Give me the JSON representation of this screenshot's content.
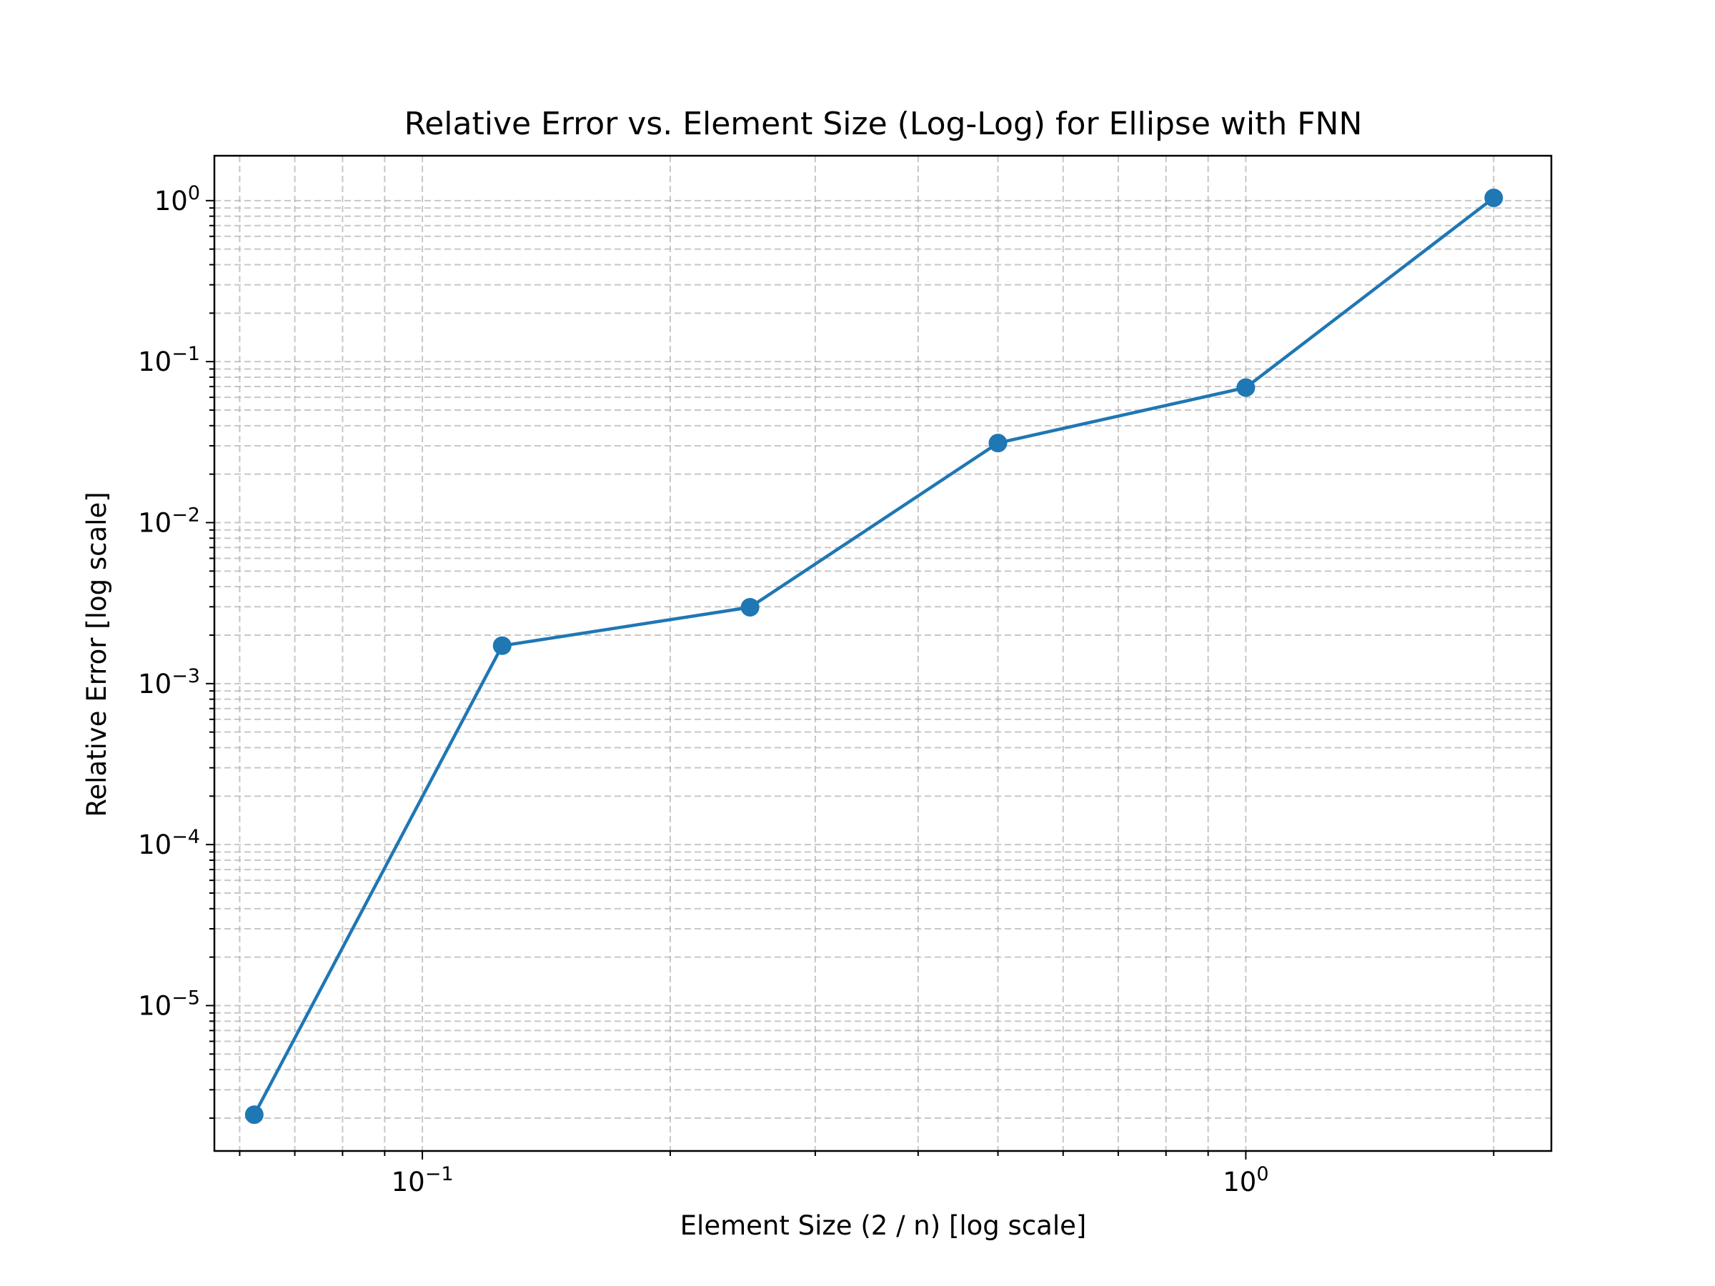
{
  "chart_data": {
    "type": "line",
    "title": "Relative Error vs. Element Size (Log-Log) for Ellipse with FNN",
    "xlabel": "Element Size (2 / n) [log scale]",
    "ylabel": "Relative Error [log scale]",
    "xscale": "log",
    "yscale": "log",
    "xlim": [
      0.0559,
      2.35
    ],
    "ylim": [
      1.25e-06,
      1.9
    ],
    "grid": true,
    "xticks": [
      {
        "value": 0.1,
        "base": "10",
        "exp": "−1"
      },
      {
        "value": 1,
        "base": "10",
        "exp": "0"
      }
    ],
    "yticks": [
      {
        "value": 1,
        "base": "10",
        "exp": "0"
      },
      {
        "value": 0.1,
        "base": "10",
        "exp": "−1"
      },
      {
        "value": 0.01,
        "base": "10",
        "exp": "−2"
      },
      {
        "value": 0.001,
        "base": "10",
        "exp": "−3"
      },
      {
        "value": 0.0001,
        "base": "10",
        "exp": "−4"
      },
      {
        "value": 1e-05,
        "base": "10",
        "exp": "−5"
      }
    ],
    "series": [
      {
        "name": "Relative Error",
        "color": "#1f77b4",
        "marker": "circle",
        "x": [
          0.0625,
          0.125,
          0.25,
          0.5,
          1.0,
          2.0
        ],
        "y": [
          2.1e-06,
          0.00172,
          0.00298,
          0.0312,
          0.069,
          1.04
        ]
      }
    ]
  }
}
